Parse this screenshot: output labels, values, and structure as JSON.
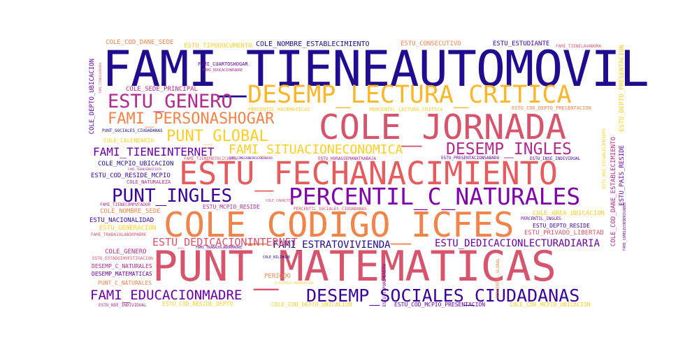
{
  "palette": {
    "dark_blue": "#1f0c8f",
    "purple": "#6a00a8",
    "magenta": "#b12a90",
    "rose": "#d6556d",
    "orange": "#f1844b",
    "yellow": "#fcce25"
  },
  "words": {
    "fami_tieneautomovil": "FAMI_TIENEAUTOMOVIL",
    "desemp_lectura_critica": "DESEMP_LECTURA_CRITICA",
    "estu_genero": "ESTU_GENERO",
    "fami_personashogar": "FAMI_PERSONASHOGAR",
    "cole_jornada": "COLE_JORNADA",
    "punt_global": "PUNT_GLOBAL",
    "fami_tieneinternet": "FAMI_TIENEINTERNET",
    "fami_situacioneconomica": "FAMI_SITUACIONECONOMICA",
    "desemp_ingles": "DESEMP_INGLES",
    "estu_fechanacimiento": "ESTU_FECHANACIMIENTO",
    "punt_ingles": "PUNT_INGLES",
    "percentil_c_naturales": "PERCENTIL_C_NATURALES",
    "cole_codigo_icfes": "COLE_CODIGO_ICFES",
    "fami_estratovivienda": "FAMI_ESTRATOVIVIENDA",
    "estu_dedicacionlecturadiaria": "ESTU_DEDICACIONLECTURADIARIA",
    "estu_dedicacioninternet": "ESTU_DEDICACIONINTERNET",
    "punt_matematicas": "PUNT_MATEMATICAS",
    "fami_educacionmadre": "FAMI_EDUCACIONMADRE",
    "desemp_sociales_ciudadanas": "DESEMP_SOCIALES_CIUDADANAS",
    "cole_cod_dane_sede": "COLE_COD_DANE_SEDE",
    "estu_tipodocumento": "ESTU_TIPODOCUMENTO",
    "cole_nombre_establecimiento": "COLE_NOMBRE_ESTABLECIMIENTO",
    "estu_consecutivo": "ESTU_CONSECUTIVO",
    "estu_estudiante": "ESTU_ESTUDIANTE",
    "fami_tienelavadora": "FAMI_TIENELAVADORA",
    "fami_cuartoshogar": "FAMI_CUARTOSHOGAR",
    "fami_educacionpadre": "FAMI_EDUCACIONPADRE",
    "cole_sede_principal": "COLE_SEDE_PRINCIPAL",
    "percentil_matematicas": "PERCENTIL_MATEMATICAS",
    "percentil_lectura_critica": "PERCENTIL_LECTURA_CRITICA",
    "estu_cod_depto_presentacion": "ESTU_COD_DEPTO_PRESENTACION",
    "punt_sociales_ciudadanas": "PUNT_SOCIALES_CIUDADANAS",
    "cole_calendario": "COLE_CALENDARIO",
    "cole_mcpio_ubicacion": "COLE_MCPIO_UBICACION",
    "estu_cod_reside_mcpio": "ESTU_COD_RESIDE_MCPIO",
    "cole_naturaleza": "COLE_NATURALEZA",
    "estu_inse_individual": "ESTU_INSE_INDIVIDUAL",
    "fami_tienecomputador": "FAMI_TIENECOMPUTADOR",
    "cole_nombre_sede": "COLE_NOMBRE_SEDE",
    "estu_mcpio_reside": "ESTU_MCPIO_RESIDE",
    "percentil_sociales_ciudadanas": "PERCENTIL_SOCIALES_CIUDADANAS",
    "estu_nacionalidad": "ESTU_NACIONALIDAD",
    "estu_generacion": "ESTU_GENERACION",
    "cole_area_ubicacion": "COLE_AREA_UBICACION",
    "percentil_ingles": "PERCENTIL_INGLES",
    "estu_depto_reside": "ESTU_DEPTO_RESIDE",
    "estu_privado_libertad": "ESTU_PRIVADO_LIBERTAD",
    "fami_trabajolaborpadre": "FAMI_TRABAJOLABORPADRE",
    "cole_genero": "COLE_GENERO",
    "estu_estadoinvestigacion": "ESTU_ESTADOINVESTIGACION",
    "desemp_c_naturales": "DESEMP_C_NATURALES",
    "desemp_matematicas": "DESEMP_MATEMATICAS",
    "punt_c_naturales": "PUNT_C_NATURALES",
    "periodo": "PERIODO",
    "cole_bilingue": "COLE_BILINGUE",
    "estu_nse_individual": "ESTU_NSE_INDIVIDUAL",
    "estu_cod_reside_depto": "ESTU_COD_RESIDE_DEPTO",
    "cole_cod_depto_ubicacion": "COLE_COD_DEPTO_UBICACION",
    "estu_cod_mcpio_presentacion": "ESTU_COD_MCPIO_PRESENTACION",
    "cole_cod_mcpio_ubicacion": "COLE_COD_MCPIO_UBICACION",
    "estu_horassemanatrabaja": "ESTU_HORASSEMANATRABAJA",
    "estu_presentacionsabado": "ESTU_PRESENTACIONSABADO",
    "estu_nse_establecimiento": "ESTU_NSE_ESTABLECIMIENTO",
    "estu_inse_individual_mid": "ESTU_INSE_INDIVIDUAL",
    "fami_tienemotocicleta": "FAMI_TIENEMOTOCICLETA",
    "fami_comelechederivados": "FAMI_COMELECHEDERIVADOS",
    "fami_tieneserviciotv": "FAMI_TIENESERVICIOTV",
    "cole_caracter": "COLE_CARACTER",
    "fami_trabajolabormadre": "FAMI_TRABAJOLABORMADRE",
    "fami_comecarnepescadohuevo": "FAMI_COMECARNEPESCADOHUEVO",
    "percentil_global": "PERCENTIL_GLOBAL",
    "cole_depto_ubicacion": "COLE_DEPTO_UBICACION",
    "cole_cod_dane_establecimiento": "COLE_COD_DANE_ESTABLECIMIENTO",
    "estu_pais_reside": "ESTU_PAIS_RESIDE",
    "estu_depto_presentacion": "ESTU_DEPTO_PRESENTACION",
    "estu_tipo_remunera": "ESTU_TIPOREMUNERA",
    "estu_mcpio_presentacion": "ESTU_MCPIO_PRESENTACION",
    "fami_tienelavadora_small": "FAMI_TIENELAVADORA",
    "cole_cod_dane_sede_v": "COLE_COD_DANE_SEDE",
    "estu_estudiante_small": "ESTU_ESTUDIANTE",
    "fami_cuartoshogar_small": "FAMI_CUARTOSHOGAR",
    "cole_naturaleza_v": "COLE_NATURALEZA"
  }
}
